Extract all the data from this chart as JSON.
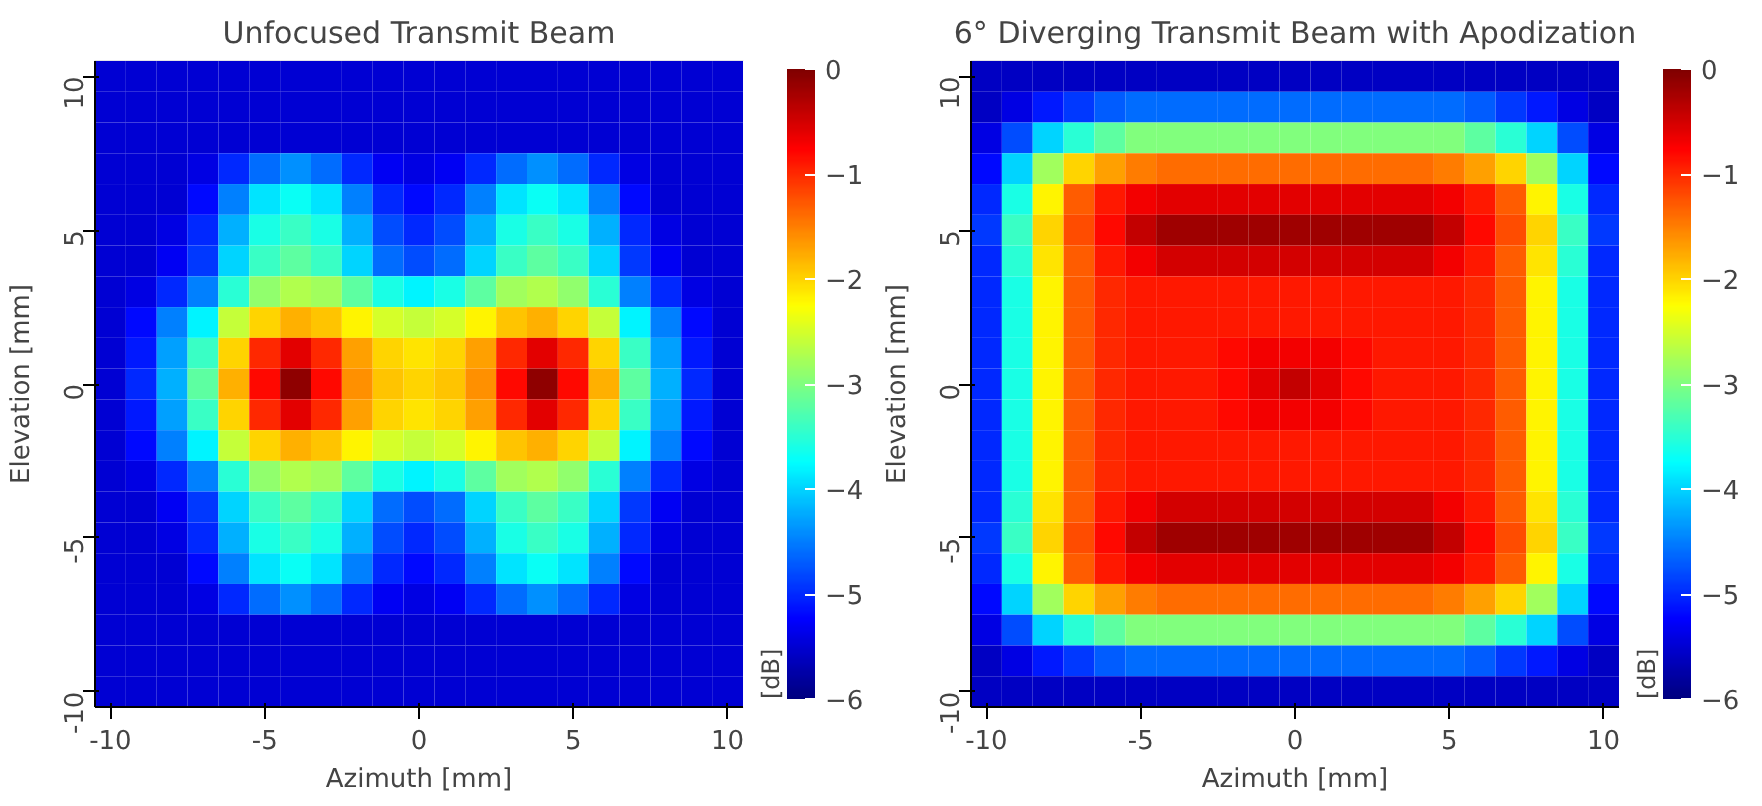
{
  "chart_data": [
    {
      "type": "heatmap",
      "title": "Unfocused Transmit Beam",
      "xlabel": "Azimuth [mm]",
      "ylabel": "Elevation [mm]",
      "clabel": "[dB]",
      "categories": [
        "-10",
        null,
        null,
        null,
        null,
        "-5",
        null,
        null,
        null,
        null,
        "0",
        null,
        null,
        null,
        null,
        "5",
        null,
        null,
        null,
        null,
        "10"
      ],
      "y_categories": [
        "10",
        null,
        null,
        null,
        null,
        "5",
        null,
        null,
        null,
        null,
        "0",
        null,
        null,
        null,
        null,
        "-5",
        null,
        null,
        null,
        null,
        "-10"
      ],
      "clim": [
        -6,
        0
      ],
      "cticks": [
        -6,
        -5,
        -4,
        -3,
        -2,
        -1,
        0
      ],
      "grid": false,
      "cells": [
        [
          -5.5,
          -5.5,
          -5.5,
          -5.5,
          -5.5,
          -5.5,
          -5.5,
          -5.5,
          -5.5,
          -5.5,
          -5.5,
          -5.5,
          -5.5,
          -5.5,
          -5.5,
          -5.5,
          -5.5,
          -5.5,
          -5.5,
          -5.5,
          -5.5
        ],
        [
          -5.5,
          -5.5,
          -5.5,
          -5.5,
          -5.5,
          -5.5,
          -5.5,
          -5.5,
          -5.5,
          -5.5,
          -5.5,
          -5.5,
          -5.5,
          -5.5,
          -5.5,
          -5.5,
          -5.5,
          -5.5,
          -5.5,
          -5.5,
          -5.5
        ],
        [
          -5.5,
          -5.5,
          -5.5,
          -5.5,
          -5.5,
          -5.5,
          -5.5,
          -5.5,
          -5.5,
          -5.5,
          -5.5,
          -5.5,
          -5.5,
          -5.5,
          -5.5,
          -5.5,
          -5.5,
          -5.5,
          -5.5,
          -5.5,
          -5.5
        ],
        [
          -5.5,
          -5.5,
          -5.5,
          -5.4,
          -5.0,
          -4.6,
          -4.4,
          -4.6,
          -5.0,
          -5.3,
          -5.4,
          -5.3,
          -5.0,
          -4.6,
          -4.4,
          -4.6,
          -5.0,
          -5.4,
          -5.5,
          -5.5,
          -5.5
        ],
        [
          -5.5,
          -5.5,
          -5.5,
          -5.2,
          -4.5,
          -3.9,
          -3.7,
          -3.9,
          -4.5,
          -5.0,
          -5.2,
          -5.0,
          -4.5,
          -3.9,
          -3.7,
          -3.9,
          -4.5,
          -5.2,
          -5.5,
          -5.5,
          -5.5
        ],
        [
          -5.5,
          -5.5,
          -5.4,
          -5.0,
          -4.2,
          -3.6,
          -3.4,
          -3.6,
          -4.2,
          -4.8,
          -5.0,
          -4.8,
          -4.2,
          -3.6,
          -3.4,
          -3.6,
          -4.2,
          -5.0,
          -5.4,
          -5.5,
          -5.5
        ],
        [
          -5.5,
          -5.5,
          -5.3,
          -4.9,
          -4.0,
          -3.4,
          -3.2,
          -3.4,
          -4.0,
          -4.6,
          -4.8,
          -4.6,
          -4.0,
          -3.4,
          -3.2,
          -3.4,
          -4.0,
          -4.9,
          -5.3,
          -5.5,
          -5.5
        ],
        [
          -5.5,
          -5.4,
          -5.0,
          -4.5,
          -3.5,
          -2.9,
          -2.7,
          -2.8,
          -3.2,
          -3.6,
          -3.8,
          -3.6,
          -3.2,
          -2.8,
          -2.7,
          -2.9,
          -3.5,
          -4.5,
          -5.0,
          -5.4,
          -5.5
        ],
        [
          -5.5,
          -5.2,
          -4.5,
          -3.8,
          -2.6,
          -2.0,
          -1.8,
          -1.9,
          -2.2,
          -2.5,
          -2.6,
          -2.5,
          -2.2,
          -1.9,
          -1.8,
          -2.0,
          -2.6,
          -3.8,
          -4.5,
          -5.2,
          -5.5
        ],
        [
          -5.5,
          -5.1,
          -4.3,
          -3.4,
          -2.0,
          -1.0,
          -0.6,
          -1.0,
          -1.7,
          -2.0,
          -2.1,
          -2.0,
          -1.7,
          -1.0,
          -0.6,
          -1.0,
          -2.0,
          -3.4,
          -4.3,
          -5.1,
          -5.5
        ],
        [
          -5.5,
          -5.0,
          -4.2,
          -3.2,
          -1.8,
          -0.8,
          -0.1,
          -0.8,
          -1.6,
          -1.9,
          -2.0,
          -1.9,
          -1.6,
          -0.8,
          -0.1,
          -0.8,
          -1.8,
          -3.2,
          -4.2,
          -5.0,
          -5.5
        ],
        [
          -5.5,
          -5.1,
          -4.3,
          -3.4,
          -2.0,
          -1.0,
          -0.6,
          -1.0,
          -1.7,
          -2.0,
          -2.1,
          -2.0,
          -1.7,
          -1.0,
          -0.6,
          -1.0,
          -2.0,
          -3.4,
          -4.3,
          -5.1,
          -5.5
        ],
        [
          -5.5,
          -5.2,
          -4.5,
          -3.8,
          -2.6,
          -2.0,
          -1.8,
          -1.9,
          -2.2,
          -2.5,
          -2.6,
          -2.5,
          -2.2,
          -1.9,
          -1.8,
          -2.0,
          -2.6,
          -3.8,
          -4.5,
          -5.2,
          -5.5
        ],
        [
          -5.5,
          -5.4,
          -5.0,
          -4.5,
          -3.5,
          -2.9,
          -2.7,
          -2.8,
          -3.2,
          -3.6,
          -3.8,
          -3.6,
          -3.2,
          -2.8,
          -2.7,
          -2.9,
          -3.5,
          -4.5,
          -5.0,
          -5.4,
          -5.5
        ],
        [
          -5.5,
          -5.5,
          -5.3,
          -4.9,
          -4.0,
          -3.4,
          -3.2,
          -3.4,
          -4.0,
          -4.6,
          -4.8,
          -4.6,
          -4.0,
          -3.4,
          -3.2,
          -3.4,
          -4.0,
          -4.9,
          -5.3,
          -5.5,
          -5.5
        ],
        [
          -5.5,
          -5.5,
          -5.4,
          -5.0,
          -4.2,
          -3.6,
          -3.4,
          -3.6,
          -4.2,
          -4.8,
          -5.0,
          -4.8,
          -4.2,
          -3.6,
          -3.4,
          -3.6,
          -4.2,
          -5.0,
          -5.4,
          -5.5,
          -5.5
        ],
        [
          -5.5,
          -5.5,
          -5.5,
          -5.2,
          -4.5,
          -3.9,
          -3.7,
          -3.9,
          -4.5,
          -5.0,
          -5.2,
          -5.0,
          -4.5,
          -3.9,
          -3.7,
          -3.9,
          -4.5,
          -5.2,
          -5.5,
          -5.5,
          -5.5
        ],
        [
          -5.5,
          -5.5,
          -5.5,
          -5.4,
          -5.0,
          -4.6,
          -4.4,
          -4.6,
          -5.0,
          -5.3,
          -5.4,
          -5.3,
          -5.0,
          -4.6,
          -4.4,
          -4.6,
          -5.0,
          -5.4,
          -5.5,
          -5.5,
          -5.5
        ],
        [
          -5.5,
          -5.5,
          -5.5,
          -5.5,
          -5.5,
          -5.5,
          -5.5,
          -5.5,
          -5.5,
          -5.5,
          -5.5,
          -5.5,
          -5.5,
          -5.5,
          -5.5,
          -5.5,
          -5.5,
          -5.5,
          -5.5,
          -5.5,
          -5.5
        ],
        [
          -5.5,
          -5.5,
          -5.5,
          -5.5,
          -5.5,
          -5.5,
          -5.5,
          -5.5,
          -5.5,
          -5.5,
          -5.5,
          -5.5,
          -5.5,
          -5.5,
          -5.5,
          -5.5,
          -5.5,
          -5.5,
          -5.5,
          -5.5,
          -5.5
        ],
        [
          -5.5,
          -5.5,
          -5.5,
          -5.5,
          -5.5,
          -5.5,
          -5.5,
          -5.5,
          -5.5,
          -5.5,
          -5.5,
          -5.5,
          -5.5,
          -5.5,
          -5.5,
          -5.5,
          -5.5,
          -5.5,
          -5.5,
          -5.5,
          -5.5
        ]
      ]
    },
    {
      "type": "heatmap",
      "title": "6° Diverging Transmit Beam with Apodization",
      "xlabel": "Azimuth [mm]",
      "ylabel": "Elevation [mm]",
      "clabel": "[dB]",
      "categories": [
        "-10",
        null,
        null,
        null,
        null,
        "-5",
        null,
        null,
        null,
        null,
        "0",
        null,
        null,
        null,
        null,
        "5",
        null,
        null,
        null,
        null,
        "10"
      ],
      "y_categories": [
        "10",
        null,
        null,
        null,
        null,
        "5",
        null,
        null,
        null,
        null,
        "0",
        null,
        null,
        null,
        null,
        "-5",
        null,
        null,
        null,
        null,
        "-10"
      ],
      "clim": [
        -6,
        0
      ],
      "cticks": [
        -6,
        -5,
        -4,
        -3,
        -2,
        -1,
        0
      ],
      "grid": false,
      "cells": [
        [
          -5.6,
          -5.6,
          -5.6,
          -5.6,
          -5.6,
          -5.6,
          -5.6,
          -5.6,
          -5.6,
          -5.6,
          -5.6,
          -5.6,
          -5.6,
          -5.6,
          -5.6,
          -5.6,
          -5.6,
          -5.6,
          -5.6,
          -5.6,
          -5.6
        ],
        [
          -5.6,
          -5.4,
          -5.1,
          -4.9,
          -4.7,
          -4.6,
          -4.6,
          -4.6,
          -4.6,
          -4.6,
          -4.6,
          -4.6,
          -4.6,
          -4.6,
          -4.6,
          -4.6,
          -4.7,
          -4.9,
          -5.1,
          -5.4,
          -5.6
        ],
        [
          -5.4,
          -4.8,
          -4.0,
          -3.5,
          -3.2,
          -3.0,
          -3.0,
          -3.0,
          -3.0,
          -3.0,
          -3.0,
          -3.0,
          -3.0,
          -3.0,
          -3.0,
          -3.0,
          -3.2,
          -3.5,
          -4.0,
          -4.8,
          -5.4
        ],
        [
          -5.2,
          -4.0,
          -2.8,
          -2.0,
          -1.7,
          -1.5,
          -1.4,
          -1.4,
          -1.4,
          -1.4,
          -1.4,
          -1.4,
          -1.4,
          -1.4,
          -1.4,
          -1.5,
          -1.7,
          -2.0,
          -2.8,
          -4.0,
          -5.2
        ],
        [
          -5.0,
          -3.6,
          -2.2,
          -1.3,
          -0.9,
          -0.7,
          -0.6,
          -0.6,
          -0.6,
          -0.6,
          -0.6,
          -0.6,
          -0.6,
          -0.6,
          -0.6,
          -0.7,
          -0.9,
          -1.3,
          -2.2,
          -3.6,
          -5.0
        ],
        [
          -4.9,
          -3.4,
          -2.0,
          -1.2,
          -0.8,
          -0.4,
          -0.2,
          -0.2,
          -0.2,
          -0.2,
          -0.2,
          -0.2,
          -0.2,
          -0.2,
          -0.2,
          -0.4,
          -0.8,
          -1.2,
          -2.0,
          -3.4,
          -4.9
        ],
        [
          -5.0,
          -3.5,
          -2.1,
          -1.3,
          -0.9,
          -0.7,
          -0.5,
          -0.5,
          -0.5,
          -0.5,
          -0.5,
          -0.5,
          -0.5,
          -0.5,
          -0.5,
          -0.7,
          -0.9,
          -1.3,
          -2.1,
          -3.5,
          -5.0
        ],
        [
          -5.0,
          -3.6,
          -2.2,
          -1.3,
          -1.0,
          -0.9,
          -0.9,
          -0.9,
          -0.9,
          -0.9,
          -0.9,
          -0.9,
          -0.9,
          -0.9,
          -0.9,
          -0.9,
          -1.0,
          -1.3,
          -2.2,
          -3.6,
          -5.0
        ],
        [
          -5.0,
          -3.6,
          -2.2,
          -1.3,
          -1.0,
          -0.9,
          -0.9,
          -0.9,
          -0.9,
          -0.9,
          -0.9,
          -0.9,
          -0.9,
          -0.9,
          -0.9,
          -0.9,
          -1.0,
          -1.3,
          -2.2,
          -3.6,
          -5.0
        ],
        [
          -5.0,
          -3.6,
          -2.2,
          -1.3,
          -1.0,
          -0.9,
          -0.9,
          -0.9,
          -0.8,
          -0.7,
          -0.7,
          -0.7,
          -0.8,
          -0.9,
          -0.9,
          -0.9,
          -1.0,
          -1.3,
          -2.2,
          -3.6,
          -5.0
        ],
        [
          -5.0,
          -3.6,
          -2.2,
          -1.3,
          -1.0,
          -0.9,
          -0.9,
          -0.9,
          -0.8,
          -0.6,
          -0.4,
          -0.6,
          -0.8,
          -0.9,
          -0.9,
          -0.9,
          -1.0,
          -1.3,
          -2.2,
          -3.6,
          -5.0
        ],
        [
          -5.0,
          -3.6,
          -2.2,
          -1.3,
          -1.0,
          -0.9,
          -0.9,
          -0.9,
          -0.8,
          -0.7,
          -0.7,
          -0.7,
          -0.8,
          -0.9,
          -0.9,
          -0.9,
          -1.0,
          -1.3,
          -2.2,
          -3.6,
          -5.0
        ],
        [
          -5.0,
          -3.6,
          -2.2,
          -1.3,
          -1.0,
          -0.9,
          -0.9,
          -0.9,
          -0.9,
          -0.9,
          -0.9,
          -0.9,
          -0.9,
          -0.9,
          -0.9,
          -0.9,
          -1.0,
          -1.3,
          -2.2,
          -3.6,
          -5.0
        ],
        [
          -5.0,
          -3.6,
          -2.2,
          -1.3,
          -1.0,
          -0.9,
          -0.9,
          -0.9,
          -0.9,
          -0.9,
          -0.9,
          -0.9,
          -0.9,
          -0.9,
          -0.9,
          -0.9,
          -1.0,
          -1.3,
          -2.2,
          -3.6,
          -5.0
        ],
        [
          -5.0,
          -3.5,
          -2.1,
          -1.3,
          -0.9,
          -0.7,
          -0.5,
          -0.5,
          -0.5,
          -0.5,
          -0.5,
          -0.5,
          -0.5,
          -0.5,
          -0.5,
          -0.7,
          -0.9,
          -1.3,
          -2.1,
          -3.5,
          -5.0
        ],
        [
          -4.9,
          -3.4,
          -2.0,
          -1.2,
          -0.8,
          -0.4,
          -0.2,
          -0.2,
          -0.2,
          -0.2,
          -0.2,
          -0.2,
          -0.2,
          -0.2,
          -0.2,
          -0.4,
          -0.8,
          -1.2,
          -2.0,
          -3.4,
          -4.9
        ],
        [
          -5.0,
          -3.6,
          -2.2,
          -1.3,
          -0.9,
          -0.7,
          -0.6,
          -0.6,
          -0.6,
          -0.6,
          -0.6,
          -0.6,
          -0.6,
          -0.6,
          -0.6,
          -0.7,
          -0.9,
          -1.3,
          -2.2,
          -3.6,
          -5.0
        ],
        [
          -5.2,
          -4.0,
          -2.8,
          -2.0,
          -1.7,
          -1.5,
          -1.4,
          -1.4,
          -1.4,
          -1.4,
          -1.4,
          -1.4,
          -1.4,
          -1.4,
          -1.4,
          -1.5,
          -1.7,
          -2.0,
          -2.8,
          -4.0,
          -5.2
        ],
        [
          -5.4,
          -4.8,
          -4.0,
          -3.5,
          -3.2,
          -3.0,
          -3.0,
          -3.0,
          -3.0,
          -3.0,
          -3.0,
          -3.0,
          -3.0,
          -3.0,
          -3.0,
          -3.0,
          -3.2,
          -3.5,
          -4.0,
          -4.8,
          -5.4
        ],
        [
          -5.6,
          -5.4,
          -5.1,
          -4.9,
          -4.7,
          -4.6,
          -4.6,
          -4.6,
          -4.6,
          -4.6,
          -4.6,
          -4.6,
          -4.6,
          -4.6,
          -4.6,
          -4.6,
          -4.7,
          -4.9,
          -5.1,
          -5.4,
          -5.6
        ],
        [
          -5.6,
          -5.6,
          -5.6,
          -5.6,
          -5.6,
          -5.6,
          -5.6,
          -5.6,
          -5.6,
          -5.6,
          -5.6,
          -5.6,
          -5.6,
          -5.6,
          -5.6,
          -5.6,
          -5.6,
          -5.6,
          -5.6,
          -5.6,
          -5.6
        ]
      ]
    }
  ]
}
